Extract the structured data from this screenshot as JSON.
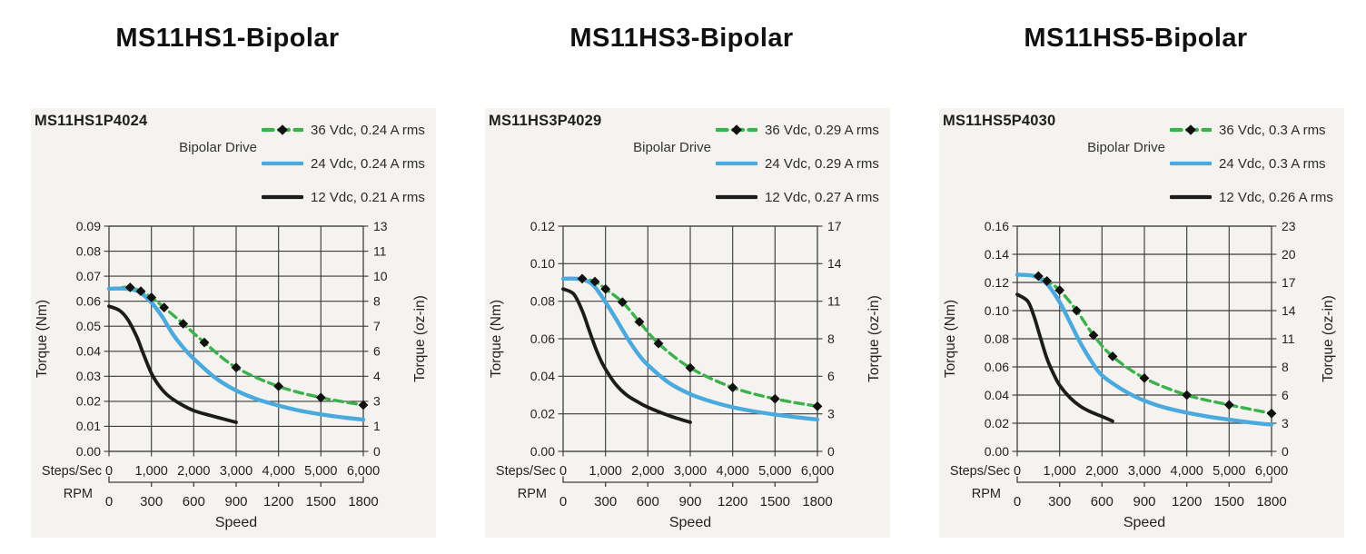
{
  "page": {
    "background": "#ffffff",
    "card_background": "#f5f3f0"
  },
  "colors": {
    "green": "#3cb14b",
    "blue": "#4aa9dd",
    "black": "#1c1c1c",
    "grid": "#3d3d3d",
    "text": "#231f20",
    "marker": "#111111",
    "title_text": "#111111"
  },
  "chart_data": [
    {
      "type": "line",
      "title": "MS11HS1-Bipolar",
      "panel_label": "MS11HS1P4024",
      "drive_label": "Bipolar Drive",
      "x": {
        "label": "Speed",
        "steps_label": "Steps/Sec",
        "rpm_label": "RPM",
        "min": 0,
        "max": 6000,
        "steps_ticks": [
          "0",
          "1,000",
          "2,000",
          "3,000",
          "4,000",
          "5,000",
          "6,000"
        ],
        "rpm_ticks": [
          "0",
          "300",
          "600",
          "900",
          "1200",
          "1500",
          "1800"
        ]
      },
      "y_left": {
        "label": "Torque (Nm)",
        "min": 0,
        "max": 0.09,
        "ticks_top_to_bottom": [
          "0.09",
          "0.08",
          "0.07",
          "0.06",
          "0.05",
          "0.04",
          "0.03",
          "0.02",
          "0.01",
          "0.00"
        ]
      },
      "y_right": {
        "label": "Torque (oz-in)",
        "ticks_top_to_bottom": [
          "13",
          "11",
          "10",
          "8",
          "7",
          "6",
          "4",
          "3",
          "1",
          "0"
        ]
      },
      "series": [
        {
          "name": "36 Vdc, 0.24 A rms",
          "color_key": "green",
          "style": "dashed",
          "marker": "diamond",
          "line_start": [
            320,
            0.0655
          ],
          "points": [
            [
              500,
              0.0655
            ],
            [
              750,
              0.064
            ],
            [
              1000,
              0.0615
            ],
            [
              1300,
              0.0575
            ],
            [
              1750,
              0.051
            ],
            [
              2250,
              0.0435
            ],
            [
              3000,
              0.0335
            ],
            [
              4000,
              0.026
            ],
            [
              5000,
              0.0215
            ],
            [
              6000,
              0.0185
            ]
          ]
        },
        {
          "name": "24 Vdc, 0.24 A rms",
          "color_key": "blue",
          "style": "solid",
          "points": [
            [
              0,
              0.065
            ],
            [
              400,
              0.065
            ],
            [
              700,
              0.0638
            ],
            [
              1000,
              0.0595
            ],
            [
              1250,
              0.054
            ],
            [
              1500,
              0.047
            ],
            [
              1750,
              0.0415
            ],
            [
              2000,
              0.037
            ],
            [
              2500,
              0.0295
            ],
            [
              3000,
              0.0243
            ],
            [
              3500,
              0.0208
            ],
            [
              4000,
              0.0183
            ],
            [
              4500,
              0.0163
            ],
            [
              5000,
              0.0148
            ],
            [
              5500,
              0.0136
            ],
            [
              6000,
              0.0127
            ]
          ]
        },
        {
          "name": "12 Vdc, 0.21 A rms",
          "color_key": "black",
          "style": "solid",
          "points": [
            [
              0,
              0.058
            ],
            [
              250,
              0.0563
            ],
            [
              450,
              0.0525
            ],
            [
              650,
              0.046
            ],
            [
              800,
              0.0395
            ],
            [
              1000,
              0.0312
            ],
            [
              1200,
              0.0258
            ],
            [
              1400,
              0.0222
            ],
            [
              1700,
              0.0188
            ],
            [
              2000,
              0.0163
            ],
            [
              2400,
              0.0143
            ],
            [
              2800,
              0.0125
            ],
            [
              3000,
              0.0116
            ]
          ]
        }
      ]
    },
    {
      "type": "line",
      "title": "MS11HS3-Bipolar",
      "panel_label": "MS11HS3P4029",
      "drive_label": "Bipolar Drive",
      "x": {
        "label": "Speed",
        "steps_label": "Steps/Sec",
        "rpm_label": "RPM",
        "min": 0,
        "max": 6000,
        "steps_ticks": [
          "0",
          "1,000",
          "2,000",
          "3,000",
          "4,000",
          "5,000",
          "6,000"
        ],
        "rpm_ticks": [
          "0",
          "300",
          "600",
          "900",
          "1200",
          "1500",
          "1800"
        ]
      },
      "y_left": {
        "label": "Torque (Nm)",
        "min": 0,
        "max": 0.12,
        "ticks_top_to_bottom": [
          "0.12",
          "0.10",
          "0.08",
          "0.06",
          "0.04",
          "0.02",
          "0.00"
        ]
      },
      "y_right": {
        "label": "Torque (oz-in)",
        "ticks_top_to_bottom": [
          "17",
          "14",
          "11",
          "8",
          "6",
          "3",
          "0"
        ]
      },
      "series": [
        {
          "name": "36 Vdc, 0.29 A rms",
          "color_key": "green",
          "style": "dashed",
          "marker": "diamond",
          "line_start": [
            320,
            0.092
          ],
          "points": [
            [
              450,
              0.092
            ],
            [
              750,
              0.0905
            ],
            [
              1000,
              0.0865
            ],
            [
              1400,
              0.0795
            ],
            [
              1800,
              0.069
            ],
            [
              2250,
              0.0575
            ],
            [
              3000,
              0.0445
            ],
            [
              4000,
              0.034
            ],
            [
              5000,
              0.028
            ],
            [
              6000,
              0.024
            ]
          ]
        },
        {
          "name": "24 Vdc, 0.29 A rms",
          "color_key": "blue",
          "style": "solid",
          "points": [
            [
              0,
              0.092
            ],
            [
              400,
              0.0918
            ],
            [
              700,
              0.0888
            ],
            [
              1000,
              0.0795
            ],
            [
              1250,
              0.0705
            ],
            [
              1500,
              0.061
            ],
            [
              1750,
              0.0525
            ],
            [
              2000,
              0.046
            ],
            [
              2500,
              0.0365
            ],
            [
              3000,
              0.0305
            ],
            [
              3500,
              0.0265
            ],
            [
              4000,
              0.0235
            ],
            [
              4500,
              0.0213
            ],
            [
              5000,
              0.0196
            ],
            [
              5500,
              0.0182
            ],
            [
              6000,
              0.017
            ]
          ]
        },
        {
          "name": "12 Vdc, 0.27 A rms",
          "color_key": "black",
          "style": "solid",
          "points": [
            [
              0,
              0.0865
            ],
            [
              250,
              0.0838
            ],
            [
              450,
              0.075
            ],
            [
              600,
              0.0655
            ],
            [
              750,
              0.056
            ],
            [
              900,
              0.048
            ],
            [
              1050,
              0.042
            ],
            [
              1250,
              0.0355
            ],
            [
              1500,
              0.03
            ],
            [
              1750,
              0.0265
            ],
            [
              2000,
              0.0235
            ],
            [
              2500,
              0.019
            ],
            [
              3000,
              0.0155
            ]
          ]
        }
      ]
    },
    {
      "type": "line",
      "title": "MS11HS5-Bipolar",
      "panel_label": "MS11HS5P4030",
      "drive_label": "Bipolar Drive",
      "x": {
        "label": "Speed",
        "steps_label": "Steps/Sec",
        "rpm_label": "RPM",
        "min": 0,
        "max": 6000,
        "steps_ticks": [
          "0",
          "1,000",
          "2,000",
          "3,000",
          "4,000",
          "5,000",
          "6,000"
        ],
        "rpm_ticks": [
          "0",
          "300",
          "600",
          "900",
          "1200",
          "1500",
          "1800"
        ]
      },
      "y_left": {
        "label": "Torque (Nm)",
        "min": 0,
        "max": 0.16,
        "ticks_top_to_bottom": [
          "0.16",
          "0.14",
          "0.12",
          "0.10",
          "0.08",
          "0.06",
          "0.04",
          "0.02",
          "0.00"
        ]
      },
      "y_right": {
        "label": "Torque (oz-in)",
        "ticks_top_to_bottom": [
          "23",
          "20",
          "17",
          "14",
          "11",
          "8",
          "6",
          "3",
          "0"
        ]
      },
      "series": [
        {
          "name": "36 Vdc, 0.3 A rms",
          "color_key": "green",
          "style": "dashed",
          "marker": "diamond",
          "line_start": [
            320,
            0.125
          ],
          "points": [
            [
              500,
              0.1245
            ],
            [
              700,
              0.121
            ],
            [
              1000,
              0.1145
            ],
            [
              1400,
              0.1
            ],
            [
              1800,
              0.0825
            ],
            [
              2250,
              0.0675
            ],
            [
              3000,
              0.052
            ],
            [
              4000,
              0.04
            ],
            [
              5000,
              0.033
            ],
            [
              6000,
              0.027
            ]
          ]
        },
        {
          "name": "24 Vdc, 0.3 A rms",
          "color_key": "blue",
          "style": "solid",
          "points": [
            [
              0,
              0.1255
            ],
            [
              400,
              0.1245
            ],
            [
              700,
              0.119
            ],
            [
              1000,
              0.106
            ],
            [
              1250,
              0.0915
            ],
            [
              1500,
              0.0765
            ],
            [
              1750,
              0.064
            ],
            [
              2000,
              0.054
            ],
            [
              2500,
              0.0435
            ],
            [
              3000,
              0.036
            ],
            [
              3500,
              0.031
            ],
            [
              4000,
              0.0275
            ],
            [
              4500,
              0.0247
            ],
            [
              5000,
              0.0225
            ],
            [
              5500,
              0.0205
            ],
            [
              6000,
              0.019
            ]
          ]
        },
        {
          "name": "12 Vdc, 0.26 A rms",
          "color_key": "black",
          "style": "solid",
          "points": [
            [
              0,
              0.1115
            ],
            [
              250,
              0.1065
            ],
            [
              400,
              0.0955
            ],
            [
              550,
              0.0805
            ],
            [
              700,
              0.066
            ],
            [
              850,
              0.0555
            ],
            [
              1000,
              0.047
            ],
            [
              1250,
              0.038
            ],
            [
              1500,
              0.0318
            ],
            [
              1750,
              0.0278
            ],
            [
              2000,
              0.0248
            ],
            [
              2250,
              0.0215
            ]
          ]
        }
      ]
    }
  ]
}
